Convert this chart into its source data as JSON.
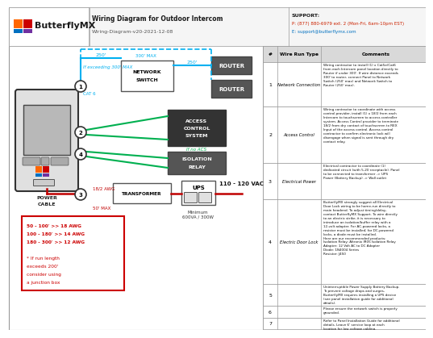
{
  "title": "Wiring Diagram for Outdoor Intercom",
  "subtitle": "Wiring-Diagram-v20-2021-12-08",
  "support_line1": "SUPPORT:",
  "support_line2": "P: (877) 880-6979 ext. 2 (Mon-Fri, 6am-10pm EST)",
  "support_line3": "E: support@butterflymx.com",
  "bg_color": "#ffffff",
  "cyan_color": "#00b0f0",
  "green_color": "#00b050",
  "dark_red": "#c00000",
  "wire_run_nums": [
    "1",
    "2",
    "3",
    "4",
    "5",
    "6",
    "7"
  ],
  "wire_run_types": [
    "Network Connection",
    "Access Control",
    "Electrical Power",
    "Electric Door Lock",
    "",
    "",
    ""
  ],
  "comments": [
    "Wiring contractor to install (1) x Cat5e/Cat6\nfrom each Intercom panel location directly to\nRouter if under 300'. If wire distance exceeds\n300' to router, connect Panel to Network\nSwitch (250' max) and Network Switch to\nRouter (250' max).",
    "Wiring contractor to coordinate with access\ncontrol provider, install (1) x 18/2 from each\nIntercom to touchscreen to access controller\nsystem. Access Control provider to terminate\n18/2 from dry contact of touchscreen to REX\nInput of the access control. Access control\ncontractor to confirm electronic lock will\ndisengage when signal is sent through dry\ncontact relay.",
    "Electrical contractor to coordinate (1)\ndedicated circuit (with 5-20 receptacle). Panel\nto be connected to transformer -> UPS\nPower (Battery Backup) -> Wall outlet",
    "ButterflyMX strongly suggest all Electrical\nDoor Lock wiring to be home-run directly to\nmain headend. To adjust timing/delay,\ncontact ButterflyMX Support. To wire directly\nto an electric strike, it is necessary to\nintroduce an isolation/buffer relay with a\n12-volt adapter. For AC-powered locks, a\nresistor must be installed; for DC-powered\nlocks, a diode must be installed.\nHere are our recommended products:\nIsolation Relay: Altronix IR05 Isolation Relay\nAdapter: 12 Volt AC to DC Adapter\nDiode: 1N4004 Series\nResistor: J450",
    "Uninterruptible Power Supply Battery Backup.\nTo prevent voltage drops and surges,\nButterflyMX requires installing a UPS device\n(see panel installation guide for additional\ndetails).",
    "Please ensure the network switch is properly\ngrounded.",
    "Refer to Panel Installation Guide for additional\ndetails. Leave 6' service loop at each\nlocation for low voltage cabling."
  ]
}
